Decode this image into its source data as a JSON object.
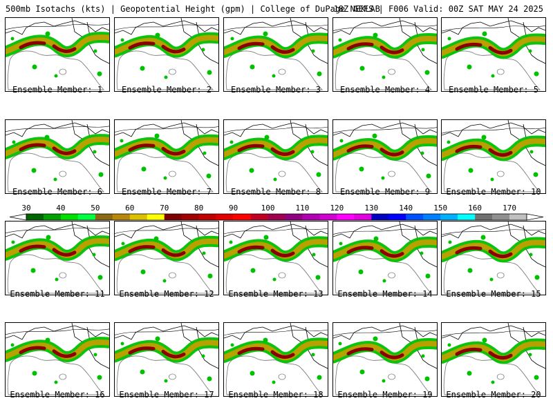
{
  "header": {
    "left": "500mb Isotachs (kts) | Geopotential Height (gpm) | College of DuPage NEXLAB",
    "right": "18Z GEFS | F006 Valid: 00Z SAT MAY 24 2025"
  },
  "caption_prefix": "Ensemble Member:",
  "members": [
    {
      "label": "Ensemble Member: 1"
    },
    {
      "label": "Ensemble Member: 2"
    },
    {
      "label": "Ensemble Member: 3"
    },
    {
      "label": "Ensemble Member: 4"
    },
    {
      "label": "Ensemble Member: 5"
    },
    {
      "label": "Ensemble Member: 6"
    },
    {
      "label": "Ensemble Member: 7"
    },
    {
      "label": "Ensemble Member: 8"
    },
    {
      "label": "Ensemble Member: 9"
    },
    {
      "label": "Ensemble Member: 10"
    },
    {
      "label": "Ensemble Member: 11"
    },
    {
      "label": "Ensemble Member: 12"
    },
    {
      "label": "Ensemble Member: 13"
    },
    {
      "label": "Ensemble Member: 14"
    },
    {
      "label": "Ensemble Member: 15"
    },
    {
      "label": "Ensemble Member: 16"
    },
    {
      "label": "Ensemble Member: 17"
    },
    {
      "label": "Ensemble Member: 18"
    },
    {
      "label": "Ensemble Member: 19"
    },
    {
      "label": "Ensemble Member: 20"
    }
  ],
  "colorbar": {
    "unit": "kts",
    "tick_labels": [
      "30",
      "40",
      "50",
      "60",
      "70",
      "80",
      "90",
      "100",
      "110",
      "120",
      "130",
      "140",
      "150",
      "160",
      "170"
    ],
    "colors": [
      "#006400",
      "#00a000",
      "#00e000",
      "#00ff40",
      "#8b6914",
      "#b8860b",
      "#dcc000",
      "#ffff00",
      "#7f0000",
      "#a00000",
      "#c00000",
      "#e00000",
      "#ff0000",
      "#c00020",
      "#a00050",
      "#900080",
      "#b000b0",
      "#d000d0",
      "#ff00ff",
      "#e000e0",
      "#0000c0",
      "#0000ff",
      "#0050ff",
      "#0080ff",
      "#00b0ff",
      "#00ffff",
      "#707070",
      "#909090",
      "#c0c0c0"
    ]
  },
  "map_colors": {
    "weak": "#00c000",
    "moderate": "#b8a000",
    "strong": "#8b0000",
    "outline": "#000000",
    "contour": "#808080"
  }
}
